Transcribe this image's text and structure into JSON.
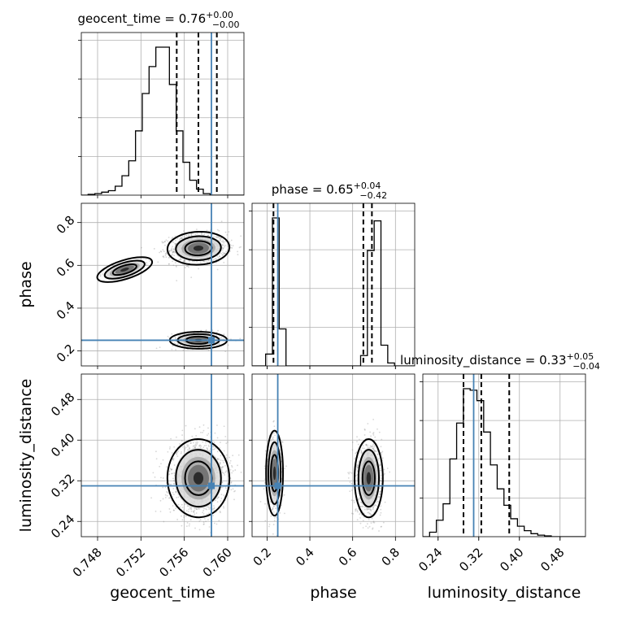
{
  "chart_data": {
    "type": "corner",
    "parameters": [
      {
        "name": "geocent_time",
        "axis_label": "geocent_time",
        "title_main": "geocent_time = 0.76",
        "title_upper": "+0.00",
        "title_lower": "−0.00",
        "range": [
          0.7465,
          0.7615
        ],
        "ticks": [
          "0.748",
          "0.752",
          "0.756",
          "0.760"
        ],
        "tick_values": [
          0.748,
          0.752,
          0.756,
          0.76
        ],
        "truth": 0.7585,
        "quantiles": [
          0.7553,
          0.7573,
          0.759
        ],
        "hist_bin_edges_start": 0.7465,
        "hist_bin_width": 0.000625,
        "hist_counts": [
          0,
          0.5,
          1,
          2,
          3,
          6,
          13,
          23,
          43,
          68,
          86,
          99,
          99,
          74,
          43,
          22,
          10,
          4,
          1,
          0,
          0,
          0,
          0,
          0
        ]
      },
      {
        "name": "phase",
        "axis_label": "phase",
        "title_main": "phase = 0.65",
        "title_upper": "+0.04",
        "title_lower": "−0.42",
        "range": [
          0.13,
          0.89
        ],
        "ticks": [
          "0.2",
          "0.4",
          "0.6",
          "0.8"
        ],
        "tick_values": [
          0.2,
          0.4,
          0.6,
          0.8
        ],
        "truth": 0.25,
        "quantiles": [
          0.23,
          0.65,
          0.69
        ],
        "hist_bin_edges_start": 0.13,
        "hist_bin_width": 0.0317,
        "hist_counts": [
          0,
          0,
          8,
          100,
          25,
          0,
          0,
          0,
          0,
          0,
          0,
          0,
          0,
          0,
          0,
          0,
          7,
          78,
          98,
          14,
          2,
          0,
          0,
          0
        ]
      },
      {
        "name": "luminosity_distance",
        "axis_label": "luminosity_distance",
        "title_main": "luminosity_distance = 0.33",
        "title_upper": "+0.05",
        "title_lower": "−0.04",
        "range": [
          0.21,
          0.53
        ],
        "ticks": [
          "0.24",
          "0.32",
          "0.40",
          "0.48"
        ],
        "tick_values": [
          0.24,
          0.32,
          0.4,
          0.48
        ],
        "truth": 0.31,
        "quantiles": [
          0.29,
          0.325,
          0.38
        ],
        "hist_bin_edges_start": 0.21,
        "hist_bin_width": 0.0133,
        "hist_counts": [
          0,
          3,
          11,
          22,
          52,
          76,
          99,
          98,
          91,
          70,
          48,
          32,
          21,
          12,
          7,
          4,
          2,
          1,
          0.5,
          0,
          0,
          0,
          0,
          0
        ]
      }
    ],
    "modes_2d": [
      {
        "pair": [
          0,
          1
        ],
        "blobs": [
          {
            "cx": 0.7573,
            "cy": 0.68,
            "sx": 0.0013,
            "sy": 0.035,
            "rho": 0.1,
            "weight": 0.7
          },
          {
            "cx": 0.7573,
            "cy": 0.25,
            "sx": 0.0012,
            "sy": 0.018,
            "rho": 0.0,
            "weight": 0.3
          },
          {
            "cx": 0.7505,
            "cy": 0.58,
            "sx": 0.0012,
            "sy": 0.02,
            "rho": 0.7,
            "weight": 0.05
          }
        ]
      },
      {
        "pair": [
          0,
          2
        ],
        "blobs": [
          {
            "cx": 0.7573,
            "cy": 0.325,
            "sx": 0.0013,
            "sy": 0.035,
            "rho": 0.05,
            "weight": 1.0
          }
        ]
      },
      {
        "pair": [
          1,
          2
        ],
        "blobs": [
          {
            "cx": 0.235,
            "cy": 0.335,
            "sx": 0.018,
            "sy": 0.038,
            "rho": 0.0,
            "weight": 0.3
          },
          {
            "cx": 0.675,
            "cy": 0.325,
            "sx": 0.03,
            "sy": 0.035,
            "rho": 0.0,
            "weight": 0.7
          }
        ]
      }
    ],
    "truth_color": "#4682b4",
    "grid": true
  }
}
